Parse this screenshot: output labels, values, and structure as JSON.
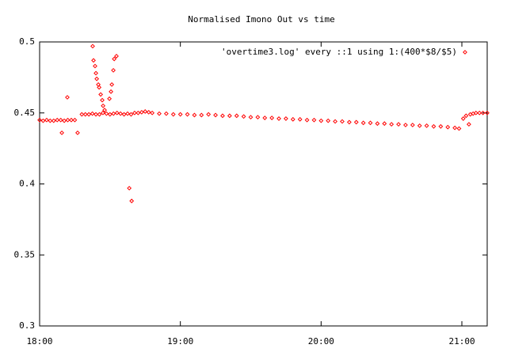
{
  "chart_data": {
    "type": "scatter",
    "title": "Normalised Imono Out vs time",
    "series": [
      {
        "name": "'overtime3.log' every ::1 using 1:(400*$8/$5)",
        "color": "#ff0000",
        "x": [
          18.0,
          18.025,
          18.05,
          18.075,
          18.1,
          18.125,
          18.15,
          18.175,
          18.2,
          18.225,
          18.25,
          18.158,
          18.197,
          18.27,
          18.3,
          18.325,
          18.35,
          18.375,
          18.4,
          18.425,
          18.45,
          18.475,
          18.5,
          18.525,
          18.55,
          18.575,
          18.6,
          18.625,
          18.65,
          18.675,
          18.7,
          18.725,
          18.75,
          18.775,
          18.8,
          18.377,
          18.383,
          18.394,
          18.4,
          18.406,
          18.417,
          18.423,
          18.434,
          18.445,
          18.451,
          18.462,
          18.496,
          18.507,
          18.513,
          18.524,
          18.53,
          18.546,
          18.637,
          18.654,
          18.85,
          18.9,
          18.95,
          19.0,
          19.05,
          19.1,
          19.15,
          19.2,
          19.25,
          19.3,
          19.35,
          19.4,
          19.45,
          19.5,
          19.55,
          19.6,
          19.65,
          19.7,
          19.75,
          19.8,
          19.85,
          19.9,
          19.95,
          20.0,
          20.05,
          20.1,
          20.15,
          20.2,
          20.25,
          20.3,
          20.35,
          20.4,
          20.45,
          20.5,
          20.55,
          20.6,
          20.65,
          20.7,
          20.75,
          20.8,
          20.85,
          20.9,
          20.95,
          20.98,
          21.01,
          21.03,
          21.05,
          21.06,
          21.08,
          21.1,
          21.125,
          21.15,
          21.18
        ],
        "values": [
          0.445,
          0.4445,
          0.445,
          0.4445,
          0.4445,
          0.445,
          0.445,
          0.4445,
          0.445,
          0.445,
          0.445,
          0.436,
          0.461,
          0.436,
          0.449,
          0.449,
          0.449,
          0.4495,
          0.449,
          0.449,
          0.45,
          0.4495,
          0.449,
          0.4495,
          0.45,
          0.4495,
          0.449,
          0.4495,
          0.449,
          0.45,
          0.45,
          0.4505,
          0.451,
          0.4505,
          0.45,
          0.497,
          0.487,
          0.483,
          0.478,
          0.474,
          0.47,
          0.468,
          0.463,
          0.459,
          0.455,
          0.452,
          0.46,
          0.465,
          0.47,
          0.48,
          0.488,
          0.49,
          0.397,
          0.388,
          0.4495,
          0.4495,
          0.449,
          0.449,
          0.449,
          0.4485,
          0.4485,
          0.449,
          0.4485,
          0.448,
          0.448,
          0.448,
          0.4475,
          0.447,
          0.447,
          0.4465,
          0.4465,
          0.446,
          0.446,
          0.4455,
          0.4455,
          0.445,
          0.445,
          0.4445,
          0.4445,
          0.444,
          0.444,
          0.4435,
          0.4435,
          0.443,
          0.443,
          0.4425,
          0.4425,
          0.442,
          0.442,
          0.4415,
          0.4415,
          0.441,
          0.441,
          0.4405,
          0.4405,
          0.44,
          0.4395,
          0.439,
          0.446,
          0.448,
          0.442,
          0.449,
          0.4495,
          0.45,
          0.45,
          0.45,
          0.45
        ]
      }
    ],
    "xlim": [
      18,
      21.18
    ],
    "xticks": [
      {
        "value": 18,
        "label": "18:00"
      },
      {
        "value": 19,
        "label": "19:00"
      },
      {
        "value": 20,
        "label": "20:00"
      },
      {
        "value": 21,
        "label": "21:00"
      }
    ],
    "ylim": [
      0.3,
      0.5
    ],
    "yticks": [
      0.3,
      0.35,
      0.4,
      0.45,
      0.5
    ],
    "grid": false,
    "legend": "top-right"
  }
}
